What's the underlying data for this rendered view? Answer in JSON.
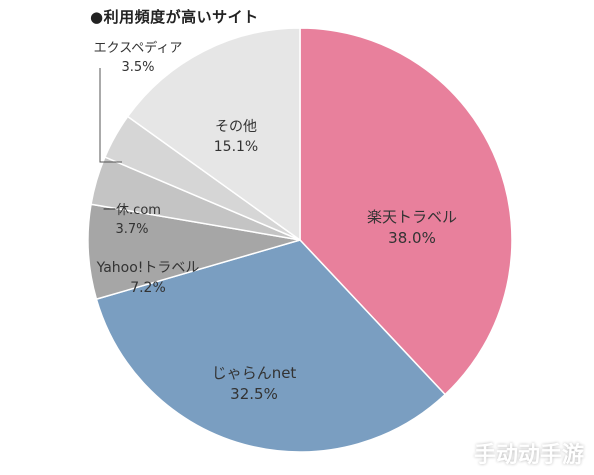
{
  "chart_data": {
    "type": "pie",
    "title": "●利用頻度が高いサイト",
    "slices": [
      {
        "label": "楽天トラベル",
        "value": 38.0,
        "value_label": "38.0%",
        "color": "#E8809C"
      },
      {
        "label": "じゃらんnet",
        "value": 32.5,
        "value_label": "32.5%",
        "color": "#7A9EC1"
      },
      {
        "label": "Yahoo!トラベル",
        "value": 7.2,
        "value_label": "7.2%",
        "color": "#A6A6A6"
      },
      {
        "label": "一休.com",
        "value": 3.7,
        "value_label": "3.7%",
        "color": "#C4C4C4"
      },
      {
        "label": "エクスペディア",
        "value": 3.5,
        "value_label": "3.5%",
        "color": "#D6D6D6"
      },
      {
        "label": "その他",
        "value": 15.1,
        "value_label": "15.1%",
        "color": "#E6E6E6"
      }
    ]
  },
  "watermark": "手动动手游"
}
